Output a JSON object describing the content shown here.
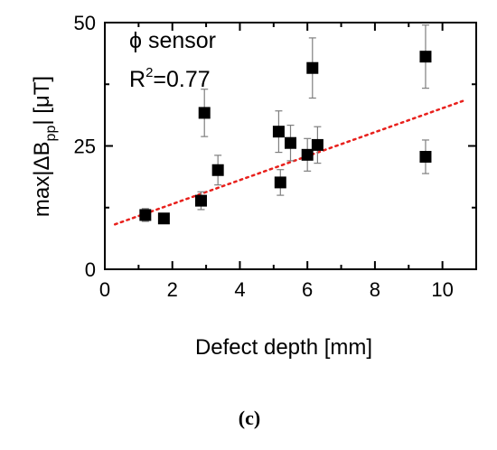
{
  "chart_data": {
    "type": "scatter",
    "xlabel": "Defect depth [mm]",
    "ylabel_parts": {
      "pre": "max|ΔB",
      "sub": "pp",
      "post": "| [μT]"
    },
    "xlim": [
      0,
      11
    ],
    "ylim": [
      0,
      50
    ],
    "x_ticks": [
      0,
      2,
      4,
      6,
      8,
      10
    ],
    "y_ticks": [
      0,
      25,
      50
    ],
    "annotation": {
      "title": "ϕ sensor",
      "r2_base": "R",
      "r2_exp": "2",
      "r2_value": "=0.77"
    },
    "caption": "(c)",
    "points": [
      {
        "x": 1.2,
        "y": 11.0,
        "err": 1.3
      },
      {
        "x": 1.75,
        "y": 10.3,
        "err": 1.0
      },
      {
        "x": 2.85,
        "y": 13.9,
        "err": 1.8
      },
      {
        "x": 2.95,
        "y": 31.7,
        "err": 4.8
      },
      {
        "x": 3.35,
        "y": 20.1,
        "err": 3.0
      },
      {
        "x": 5.15,
        "y": 27.9,
        "err": 4.2
      },
      {
        "x": 5.2,
        "y": 17.6,
        "err": 2.6
      },
      {
        "x": 5.5,
        "y": 25.6,
        "err": 3.6
      },
      {
        "x": 6.0,
        "y": 23.2,
        "err": 3.3
      },
      {
        "x": 6.15,
        "y": 40.8,
        "err": 6.1
      },
      {
        "x": 6.3,
        "y": 25.2,
        "err": 3.7
      },
      {
        "x": 9.5,
        "y": 43.1,
        "err": 6.4
      },
      {
        "x": 9.5,
        "y": 22.8,
        "err": 3.4
      }
    ],
    "fit_line": {
      "x": [
        0.3,
        10.6
      ],
      "y": [
        9.1,
        34.1
      ]
    },
    "colors": {
      "marker": "#000000",
      "fit": "#e8201c",
      "errorbar": "#7f7f7f",
      "axis": "#000000"
    },
    "grid": false
  }
}
